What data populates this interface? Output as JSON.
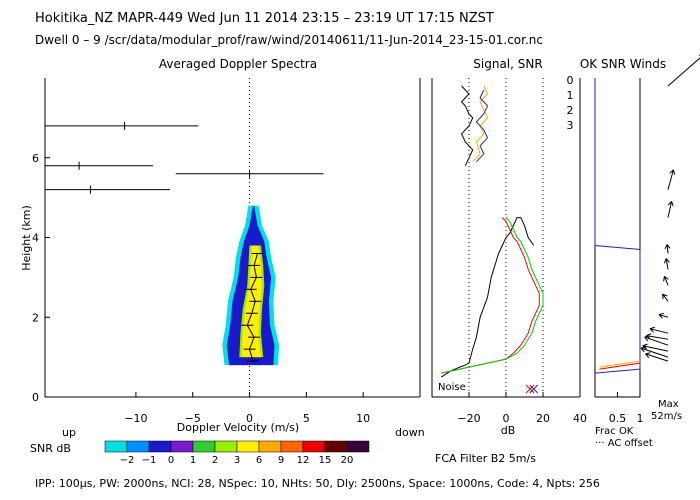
{
  "header": {
    "line1": "Hokitika_NZ   MAPR-449   Wed Jun 11 2014 23:15 – 23:19 UT 17:15 NZST",
    "line2": "Dwell   0 –  9    /scr/data/modular_prof/raw/wind/20140611/11-Jun-2014_23-15-01.cor.nc"
  },
  "footer": {
    "params": "IPP: 100μs,  PW: 2000ns,  NCI:  28,  NSpec: 10, NHts: 50,  Dly: 2500ns,  Space: 1000ns,  Code: 4,  Npts: 256",
    "filter": "FCA Filter B2   5m/s"
  },
  "chart_data": [
    {
      "type": "heatmap",
      "title": "Averaged Doppler Spectra",
      "xlabel": "Doppler Velocity (m/s)",
      "ylabel": "Height (km)",
      "x_left_label": "up",
      "x_right_label": "down",
      "xlim": [
        -18,
        15
      ],
      "ylim": [
        0,
        8
      ],
      "xticks": [
        -10,
        -5,
        0,
        5,
        10
      ],
      "yticks": [
        0,
        2,
        4,
        6
      ],
      "profile": [
        {
          "h": 0.9,
          "v": 0.3
        },
        {
          "h": 1.2,
          "v": 0.0
        },
        {
          "h": 1.5,
          "v": 0.4
        },
        {
          "h": 1.8,
          "v": -0.2
        },
        {
          "h": 2.1,
          "v": 0.2
        },
        {
          "h": 2.4,
          "v": 0.5
        },
        {
          "h": 2.7,
          "v": 0.1
        },
        {
          "h": 3.0,
          "v": 0.6
        },
        {
          "h": 3.3,
          "v": 0.4
        },
        {
          "h": 3.6,
          "v": 0.7
        }
      ],
      "spectrum_outer": [
        {
          "h": 0.8,
          "lo": -2.2,
          "hi": 2.5
        },
        {
          "h": 1.3,
          "lo": -2.4,
          "hi": 2.6
        },
        {
          "h": 1.8,
          "lo": -2.1,
          "hi": 2.2
        },
        {
          "h": 2.4,
          "lo": -1.9,
          "hi": 2.1
        },
        {
          "h": 3.0,
          "lo": -1.4,
          "hi": 2.3
        },
        {
          "h": 3.5,
          "lo": -1.2,
          "hi": 1.9
        },
        {
          "h": 3.9,
          "lo": -0.9,
          "hi": 1.7
        },
        {
          "h": 4.3,
          "lo": -0.4,
          "hi": 1.1
        },
        {
          "h": 4.8,
          "lo": -0.1,
          "hi": 0.8
        }
      ],
      "spectrum_inner": [
        {
          "h": 1.0,
          "lo": -0.9,
          "hi": 1.2
        },
        {
          "h": 1.6,
          "lo": -0.8,
          "hi": 1.0
        },
        {
          "h": 2.2,
          "lo": -0.6,
          "hi": 1.1
        },
        {
          "h": 2.8,
          "lo": -0.2,
          "hi": 1.3
        },
        {
          "h": 3.3,
          "lo": -0.1,
          "hi": 1.2
        },
        {
          "h": 3.8,
          "lo": 0.0,
          "hi": 1.0
        }
      ],
      "spread_bars": [
        {
          "h": 6.8,
          "v": -11,
          "lo": -18,
          "hi": -4.5
        },
        {
          "h": 5.8,
          "v": -15,
          "lo": -18,
          "hi": -8.5
        },
        {
          "h": 5.6,
          "v": 0,
          "lo": -6.5,
          "hi": 6.5
        },
        {
          "h": 5.2,
          "v": -14,
          "lo": -18,
          "hi": -7
        }
      ],
      "colorbar": {
        "label": "SNR dB",
        "tick_labels": [
          "−2",
          "−1",
          "0",
          "1",
          "2",
          "3",
          "6",
          "9",
          "12",
          "15",
          "20"
        ],
        "colors": [
          "#00e0e0",
          "#0090ff",
          "#1a1acc",
          "#7a1acc",
          "#33cc33",
          "#99ee00",
          "#ffee00",
          "#ffaa00",
          "#ff6600",
          "#ee0000",
          "#660000",
          "#3a003a"
        ]
      }
    },
    {
      "type": "line",
      "title": "Signal, SNR",
      "xlabel": "dB",
      "xlim": [
        -40,
        40
      ],
      "ylim": [
        0,
        8
      ],
      "xticks": [
        -20,
        0,
        20,
        40
      ],
      "annotation": "Noise",
      "legend_labels": [
        "0",
        "1",
        "2",
        "3"
      ],
      "legend_colors": [
        "#ff0000",
        "#ffaa00",
        "#00cc00",
        "#2222aa"
      ],
      "series": [
        {
          "color": "#000000",
          "x": [
            -35,
            -30,
            -25,
            -22,
            -20,
            -18,
            -16,
            -14,
            -10,
            -8,
            -6,
            -4,
            -2,
            0,
            2,
            4,
            6,
            8,
            10,
            12,
            15
          ],
          "y": [
            0.5,
            0.65,
            0.75,
            0.8,
            0.85,
            1.2,
            1.5,
            2.0,
            2.5,
            3.0,
            3.3,
            3.6,
            3.8,
            4.0,
            4.1,
            4.3,
            4.5,
            4.5,
            4.3,
            4.0,
            3.8
          ]
        },
        {
          "color": "#ff0000",
          "x": [
            -35,
            -10,
            0,
            4,
            8,
            12,
            14,
            16,
            18,
            18,
            16,
            14,
            12,
            10,
            8,
            6,
            4,
            2,
            0,
            -2
          ],
          "y": [
            0.6,
            0.85,
            0.95,
            1.1,
            1.3,
            1.6,
            1.9,
            2.1,
            2.3,
            2.6,
            2.8,
            3.0,
            3.2,
            3.5,
            3.7,
            3.9,
            4.0,
            4.2,
            4.4,
            4.5
          ]
        },
        {
          "color": "#00cc00",
          "x": [
            -35,
            -10,
            0,
            6,
            10,
            14,
            16,
            18,
            20,
            20,
            18,
            16,
            14,
            12,
            10,
            8,
            6,
            4,
            2,
            0
          ],
          "y": [
            0.6,
            0.85,
            0.95,
            1.1,
            1.3,
            1.6,
            1.9,
            2.1,
            2.3,
            2.6,
            2.8,
            3.0,
            3.2,
            3.5,
            3.7,
            3.9,
            4.0,
            4.2,
            4.4,
            4.5
          ]
        },
        {
          "color": "#000000",
          "x": [
            -22,
            -20,
            -18,
            -22,
            -24,
            -20,
            -18,
            -20,
            -22,
            -24,
            -22,
            -20,
            -22,
            -24
          ],
          "y": [
            5.8,
            6.0,
            6.2,
            6.4,
            6.6,
            6.8,
            7.0,
            7.1,
            7.3,
            7.4,
            7.5,
            7.6,
            7.7,
            7.8
          ]
        },
        {
          "color": "#ffaa00",
          "x": [
            -18,
            -14,
            -16,
            -12,
            -14,
            -10,
            -12,
            -14,
            -10,
            -12
          ],
          "y": [
            5.9,
            6.1,
            6.4,
            6.6,
            6.8,
            7.0,
            7.2,
            7.4,
            7.6,
            7.8
          ]
        },
        {
          "color": "#2222aa",
          "x": [
            -16,
            -12,
            -14,
            -10,
            -12,
            -16,
            -12,
            -10,
            -14,
            -12
          ],
          "y": [
            5.9,
            6.1,
            6.3,
            6.5,
            6.7,
            6.9,
            7.1,
            7.3,
            7.5,
            7.7
          ]
        }
      ],
      "noise_markers": [
        {
          "x": 13,
          "y": 0.2,
          "color": "#ff0000"
        },
        {
          "x": 15,
          "y": 0.2,
          "color": "#2222aa"
        }
      ],
      "dotted_verticals": [
        -20,
        0,
        20
      ]
    },
    {
      "type": "line",
      "title": "OK SNR Winds",
      "xlabel": "Frac OK",
      "xlim": [
        0,
        1
      ],
      "ylim": [
        0,
        8
      ],
      "xticks": [
        0.5,
        1
      ],
      "note_right": "Max",
      "note_right2": "52m/s",
      "legend_note": "··· AC offset",
      "frac_ok": [
        {
          "color": "#2222aa",
          "x": [
            0,
            0,
            1,
            1,
            0
          ],
          "y": [
            8,
            3.8,
            3.7,
            0.7,
            0.6
          ]
        },
        {
          "color": "#ff0000",
          "x": [
            0.1,
            1
          ],
          "y": [
            0.7,
            0.85
          ]
        },
        {
          "color": "#ffaa00",
          "x": [
            0.1,
            1
          ],
          "y": [
            0.75,
            0.9
          ]
        }
      ],
      "winds": [
        {
          "h": 0.9,
          "u": -25,
          "v": 8
        },
        {
          "h": 1.0,
          "u": -30,
          "v": 10
        },
        {
          "h": 1.15,
          "u": -28,
          "v": 6
        },
        {
          "h": 1.3,
          "u": -26,
          "v": 9
        },
        {
          "h": 1.45,
          "u": -24,
          "v": 4
        },
        {
          "h": 1.6,
          "u": -20,
          "v": 5
        },
        {
          "h": 2.0,
          "u": -10,
          "v": 3
        },
        {
          "h": 2.4,
          "u": -6,
          "v": 8
        },
        {
          "h": 2.8,
          "u": -4,
          "v": 10
        },
        {
          "h": 3.2,
          "u": -2,
          "v": 12
        },
        {
          "h": 3.6,
          "u": -1,
          "v": 10
        },
        {
          "h": 4.5,
          "u": 4,
          "v": 18
        },
        {
          "h": 5.2,
          "u": 6,
          "v": 22
        },
        {
          "h": 7.8,
          "u": 40,
          "v": 35
        }
      ]
    }
  ]
}
